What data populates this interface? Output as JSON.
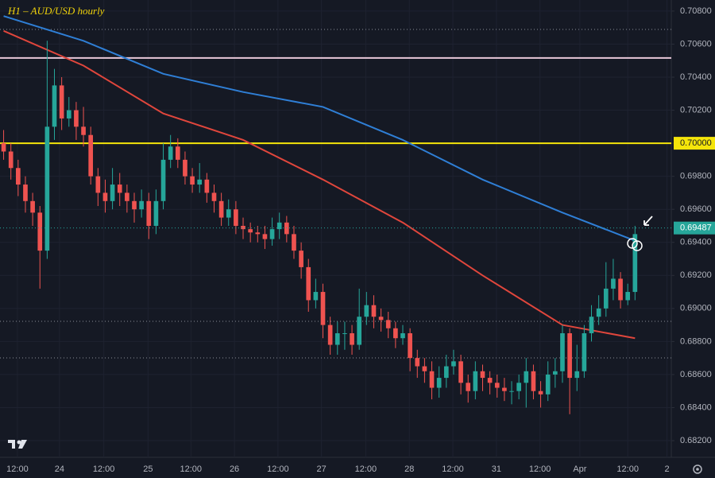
{
  "chart_data": {
    "type": "candlestick",
    "title": "H1 – AUD/USD hourly",
    "up_color": "#26a69a",
    "down_color": "#ef5350",
    "grid": true,
    "ylim": [
      0.68099,
      0.70867
    ],
    "yticks": [
      {
        "value": 0.708,
        "label": "0.70800"
      },
      {
        "value": 0.706,
        "label": "0.70600"
      },
      {
        "value": 0.704,
        "label": "0.70400"
      },
      {
        "value": 0.702,
        "label": "0.70200"
      },
      {
        "value": 0.7,
        "label": "0.70000"
      },
      {
        "value": 0.698,
        "label": "0.69800"
      },
      {
        "value": 0.696,
        "label": "0.69600"
      },
      {
        "value": 0.694,
        "label": "0.69400"
      },
      {
        "value": 0.692,
        "label": "0.69200"
      },
      {
        "value": 0.69,
        "label": "0.69000"
      },
      {
        "value": 0.688,
        "label": "0.68800"
      },
      {
        "value": 0.686,
        "label": "0.68600"
      },
      {
        "value": 0.684,
        "label": "0.68400"
      },
      {
        "value": 0.682,
        "label": "0.68200"
      }
    ],
    "xlim": [
      -0.5,
      92
    ],
    "xticks": [
      {
        "value": 1.9,
        "label": "12:00"
      },
      {
        "value": 7.7,
        "label": "24"
      },
      {
        "value": 13.8,
        "label": "12:00"
      },
      {
        "value": 19.9,
        "label": "25"
      },
      {
        "value": 25.8,
        "label": "12:00"
      },
      {
        "value": 31.8,
        "label": "26"
      },
      {
        "value": 37.8,
        "label": "12:00"
      },
      {
        "value": 43.8,
        "label": "27"
      },
      {
        "value": 49.9,
        "label": "12:00"
      },
      {
        "value": 55.9,
        "label": "28"
      },
      {
        "value": 61.9,
        "label": "12:00"
      },
      {
        "value": 67.9,
        "label": "31"
      },
      {
        "value": 73.9,
        "label": "12:00"
      },
      {
        "value": 79.4,
        "label": "Apr"
      },
      {
        "value": 86,
        "label": "12:00"
      },
      {
        "value": 91.4,
        "label": "2"
      }
    ],
    "open": [
      0.7,
      0.6995,
      0.6985,
      0.6975,
      0.6965,
      0.6958,
      0.6935,
      0.701,
      0.7035,
      0.7015,
      0.702,
      0.701,
      0.7005,
      0.698,
      0.697,
      0.6965,
      0.6975,
      0.697,
      0.6965,
      0.696,
      0.6965,
      0.695,
      0.6965,
      0.699,
      0.6998,
      0.699,
      0.698,
      0.6975,
      0.6978,
      0.697,
      0.6965,
      0.6955,
      0.696,
      0.695,
      0.6948,
      0.6946,
      0.6945,
      0.6942,
      0.6948,
      0.6952,
      0.6945,
      0.6935,
      0.6925,
      0.6905,
      0.691,
      0.689,
      0.6878,
      0.6885,
      0.6885,
      0.6878,
      0.6895,
      0.6902,
      0.6895,
      0.6893,
      0.6888,
      0.6882,
      0.6885,
      0.687,
      0.6865,
      0.6862,
      0.6852,
      0.6858,
      0.6865,
      0.6868,
      0.6855,
      0.685,
      0.6862,
      0.6858,
      0.6855,
      0.6852,
      0.685,
      0.685,
      0.6855,
      0.6862,
      0.685,
      0.6848,
      0.686,
      0.6862,
      0.6885,
      0.6858,
      0.6862,
      0.6885,
      0.6895,
      0.69,
      0.6912,
      0.6918,
      0.6905,
      0.691
    ],
    "high": [
      0.7008,
      0.7,
      0.699,
      0.698,
      0.697,
      0.6962,
      0.7062,
      0.7045,
      0.704,
      0.7028,
      0.7025,
      0.7022,
      0.701,
      0.6985,
      0.6978,
      0.6985,
      0.6982,
      0.6975,
      0.697,
      0.6972,
      0.697,
      0.6972,
      0.7,
      0.7005,
      0.7003,
      0.6995,
      0.6985,
      0.6988,
      0.6982,
      0.6975,
      0.697,
      0.6966,
      0.6965,
      0.6955,
      0.6952,
      0.695,
      0.695,
      0.6955,
      0.6958,
      0.6956,
      0.695,
      0.694,
      0.693,
      0.6918,
      0.6915,
      0.6895,
      0.6892,
      0.6892,
      0.689,
      0.6912,
      0.691,
      0.6908,
      0.69,
      0.6898,
      0.6892,
      0.689,
      0.6888,
      0.6875,
      0.687,
      0.6868,
      0.6865,
      0.6872,
      0.6875,
      0.6872,
      0.686,
      0.6868,
      0.6866,
      0.6862,
      0.686,
      0.6858,
      0.6856,
      0.686,
      0.687,
      0.6866,
      0.6856,
      0.6868,
      0.687,
      0.689,
      0.6888,
      0.6878,
      0.689,
      0.6902,
      0.6908,
      0.6928,
      0.693,
      0.6922,
      0.6915,
      0.695
    ],
    "low": [
      0.699,
      0.6978,
      0.6968,
      0.6958,
      0.695,
      0.6912,
      0.693,
      0.7002,
      0.7008,
      0.701,
      0.7002,
      0.6998,
      0.6975,
      0.6962,
      0.6958,
      0.696,
      0.6962,
      0.6958,
      0.6952,
      0.6955,
      0.6942,
      0.6945,
      0.696,
      0.6985,
      0.6985,
      0.6975,
      0.697,
      0.697,
      0.6964,
      0.6958,
      0.695,
      0.695,
      0.6945,
      0.6942,
      0.694,
      0.694,
      0.6936,
      0.6938,
      0.6942,
      0.694,
      0.693,
      0.6918,
      0.6898,
      0.69,
      0.6882,
      0.6872,
      0.6872,
      0.6875,
      0.6872,
      0.6875,
      0.689,
      0.6888,
      0.6886,
      0.6882,
      0.6876,
      0.6878,
      0.6862,
      0.6858,
      0.6855,
      0.6845,
      0.6846,
      0.6852,
      0.686,
      0.6848,
      0.6843,
      0.6845,
      0.685,
      0.6848,
      0.6846,
      0.6844,
      0.6842,
      0.6845,
      0.684,
      0.6845,
      0.684,
      0.6844,
      0.6852,
      0.6855,
      0.6836,
      0.685,
      0.6858,
      0.688,
      0.689,
      0.6895,
      0.6905,
      0.69,
      0.6902,
      0.6905
    ],
    "close": [
      0.6995,
      0.6985,
      0.6975,
      0.6965,
      0.6958,
      0.6935,
      0.701,
      0.7035,
      0.7015,
      0.702,
      0.701,
      0.7005,
      0.698,
      0.697,
      0.6965,
      0.6975,
      0.697,
      0.6965,
      0.696,
      0.6965,
      0.695,
      0.6965,
      0.699,
      0.6998,
      0.699,
      0.698,
      0.6975,
      0.6978,
      0.697,
      0.6965,
      0.6955,
      0.696,
      0.695,
      0.6948,
      0.6946,
      0.6945,
      0.6942,
      0.6948,
      0.6952,
      0.6945,
      0.6935,
      0.6925,
      0.6905,
      0.691,
      0.689,
      0.6878,
      0.6885,
      0.6885,
      0.6878,
      0.6895,
      0.6902,
      0.6895,
      0.6893,
      0.6888,
      0.6882,
      0.6885,
      0.687,
      0.6865,
      0.6862,
      0.6852,
      0.6858,
      0.6865,
      0.6868,
      0.6855,
      0.685,
      0.6862,
      0.6858,
      0.6855,
      0.6852,
      0.685,
      0.685,
      0.6855,
      0.6862,
      0.685,
      0.6848,
      0.686,
      0.6862,
      0.6885,
      0.6858,
      0.6862,
      0.6885,
      0.6895,
      0.69,
      0.6912,
      0.6918,
      0.6905,
      0.691,
      0.6945
    ],
    "moving_averages": [
      {
        "color": "#2f7fd6",
        "x": [
          0,
          11,
          22,
          33,
          44,
          55,
          66,
          77,
          87
        ],
        "values": [
          0.7077,
          0.7062,
          0.7042,
          0.7031,
          0.7022,
          0.7002,
          0.6978,
          0.6958,
          0.6941
        ]
      },
      {
        "color": "#e0463c",
        "x": [
          0,
          11,
          22,
          33,
          44,
          55,
          66,
          77,
          87
        ],
        "values": [
          0.7068,
          0.7047,
          0.7018,
          0.7002,
          0.6978,
          0.6952,
          0.692,
          0.689,
          0.6882
        ]
      }
    ],
    "levels": [
      {
        "value": 0.7,
        "label": "0.70000",
        "color": "#f5e50a",
        "dash": "none"
      },
      {
        "value": 0.70516,
        "color": "#e8c8d8",
        "dash": "none"
      },
      {
        "value": 0.70689,
        "color": "#8a8e99",
        "dash": "1 3"
      },
      {
        "value": 0.68922,
        "color": "#8a8e99",
        "dash": "1 3"
      },
      {
        "value": 0.68701,
        "color": "#8a8e99",
        "dash": "1 3"
      }
    ],
    "last_price": {
      "value": 0.69487,
      "color": "#26a69a"
    }
  }
}
